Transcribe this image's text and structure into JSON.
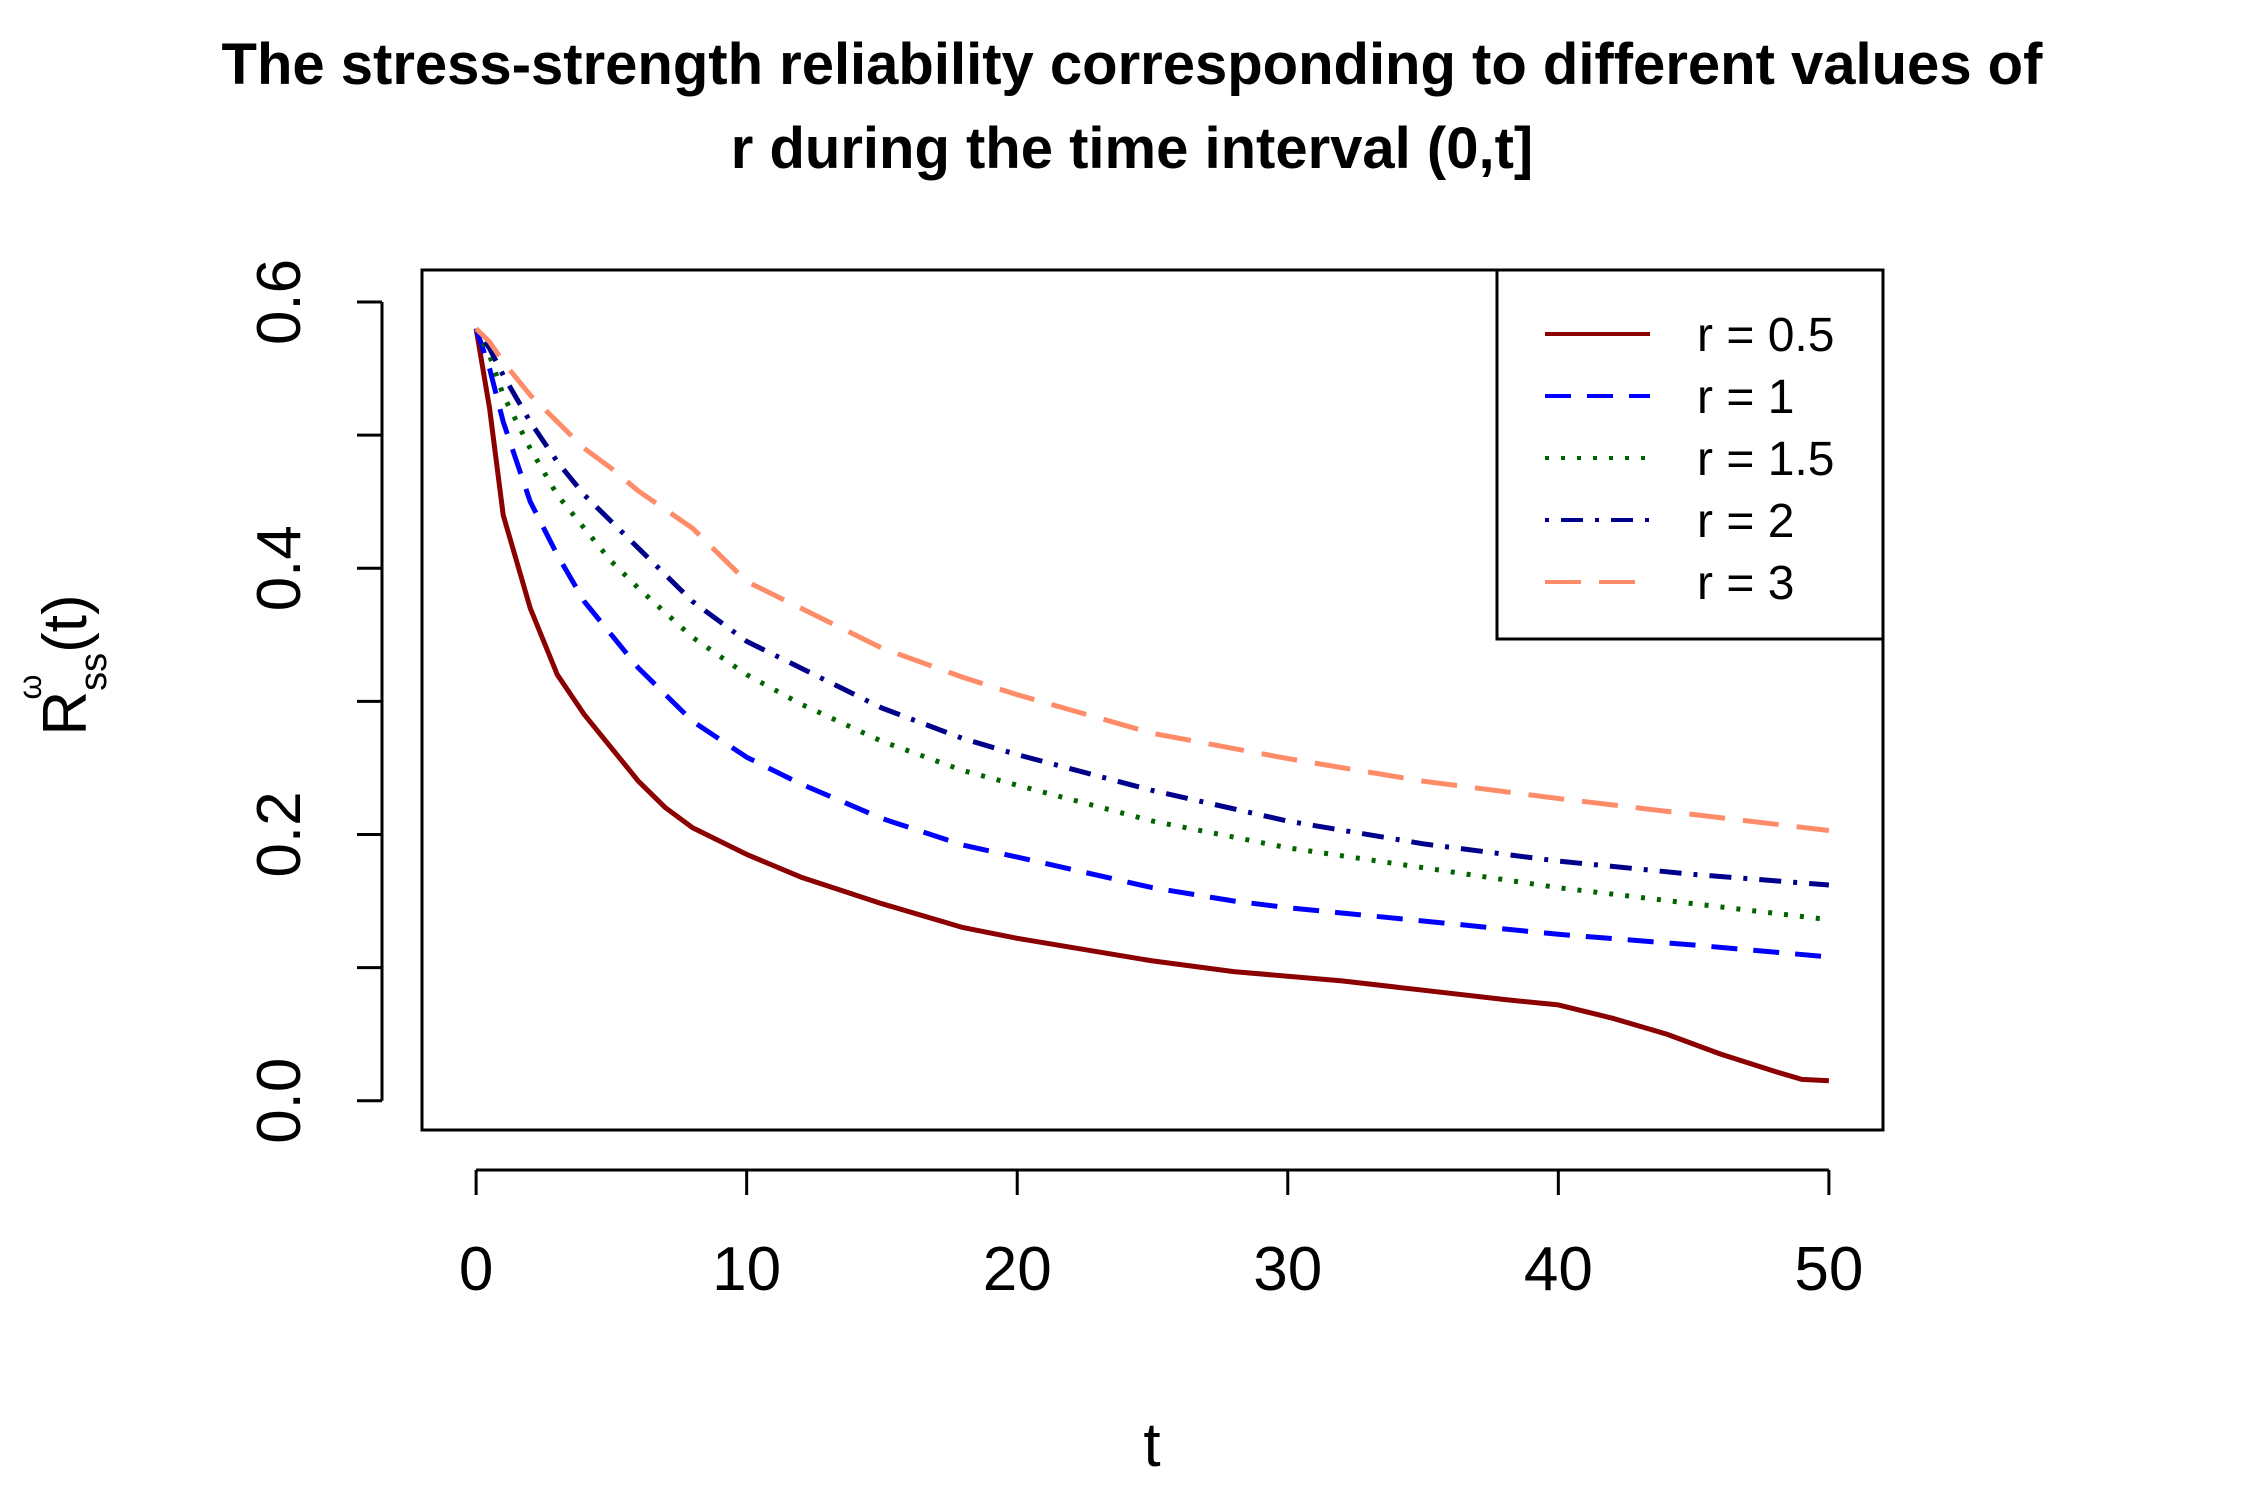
{
  "chart_data": {
    "type": "line",
    "title_lines": [
      "The stress-strength reliability corresponding to different values of",
      "r during the time interval (0,t]"
    ],
    "xlabel": "t",
    "ylabel": {
      "base": "R",
      "superscript": "ω",
      "subscript": "ss",
      "suffix": "(t)"
    },
    "xlim": [
      -2,
      52
    ],
    "ylim": [
      -0.022,
      0.624
    ],
    "x_ticks": [
      0,
      10,
      20,
      30,
      40,
      50
    ],
    "x_tick_labels": [
      "0",
      "10",
      "20",
      "30",
      "40",
      "50"
    ],
    "y_ticks": [
      0.0,
      0.1,
      0.2,
      0.3,
      0.4,
      0.5,
      0.6
    ],
    "y_tick_labels": [
      "0.0",
      "",
      "0.2",
      "",
      "0.4",
      "",
      "0.6"
    ],
    "grid": false,
    "legend_position": "top-right",
    "series": [
      {
        "name": "r = 0.5",
        "color": "#8B0000",
        "dash": "solid",
        "x": [
          0,
          0.5,
          1,
          2,
          3,
          4,
          5,
          6,
          7,
          8,
          10,
          12,
          15,
          18,
          20,
          25,
          28,
          32,
          35,
          38,
          40,
          42,
          44,
          46,
          48,
          49,
          50
        ],
        "y": [
          0.58,
          0.52,
          0.44,
          0.37,
          0.32,
          0.29,
          0.265,
          0.24,
          0.22,
          0.205,
          0.185,
          0.168,
          0.148,
          0.13,
          0.122,
          0.105,
          0.097,
          0.09,
          0.083,
          0.076,
          0.072,
          0.062,
          0.05,
          0.035,
          0.022,
          0.016,
          0.015
        ]
      },
      {
        "name": "r = 1",
        "color": "#0000FF",
        "dash": "dashed",
        "x": [
          0,
          0.5,
          1,
          2,
          3,
          4,
          5,
          6,
          8,
          10,
          12,
          15,
          18,
          20,
          25,
          28,
          30,
          35,
          40,
          45,
          50
        ],
        "y": [
          0.58,
          0.55,
          0.51,
          0.45,
          0.41,
          0.375,
          0.35,
          0.325,
          0.285,
          0.258,
          0.238,
          0.212,
          0.192,
          0.183,
          0.16,
          0.15,
          0.145,
          0.135,
          0.125,
          0.117,
          0.108
        ]
      },
      {
        "name": "r = 1.5",
        "color": "#006400",
        "dash": "dotted",
        "x": [
          0,
          0.5,
          1,
          2,
          3,
          4,
          5,
          6,
          8,
          10,
          12,
          15,
          18,
          20,
          25,
          30,
          35,
          40,
          45,
          50
        ],
        "y": [
          0.58,
          0.56,
          0.53,
          0.49,
          0.455,
          0.43,
          0.405,
          0.385,
          0.348,
          0.32,
          0.298,
          0.27,
          0.248,
          0.237,
          0.21,
          0.19,
          0.175,
          0.16,
          0.148,
          0.136
        ]
      },
      {
        "name": "r = 2",
        "color": "#00008B",
        "dash": "dotdash",
        "x": [
          0,
          0.5,
          1,
          2,
          3,
          4,
          5,
          6,
          8,
          10,
          12,
          15,
          18,
          20,
          25,
          30,
          35,
          40,
          45,
          50
        ],
        "y": [
          0.58,
          0.565,
          0.545,
          0.51,
          0.48,
          0.455,
          0.435,
          0.415,
          0.375,
          0.345,
          0.325,
          0.295,
          0.272,
          0.26,
          0.233,
          0.21,
          0.193,
          0.18,
          0.17,
          0.162
        ]
      },
      {
        "name": "r = 3",
        "color": "#FF8C69",
        "dash": "longdash",
        "x": [
          0,
          0.5,
          1,
          2,
          3,
          4,
          5,
          6,
          8,
          10,
          12,
          15,
          18,
          20,
          25,
          30,
          35,
          40,
          45,
          50
        ],
        "y": [
          0.58,
          0.57,
          0.555,
          0.53,
          0.51,
          0.49,
          0.475,
          0.458,
          0.43,
          0.39,
          0.37,
          0.34,
          0.318,
          0.305,
          0.276,
          0.257,
          0.24,
          0.227,
          0.215,
          0.203
        ]
      }
    ]
  }
}
